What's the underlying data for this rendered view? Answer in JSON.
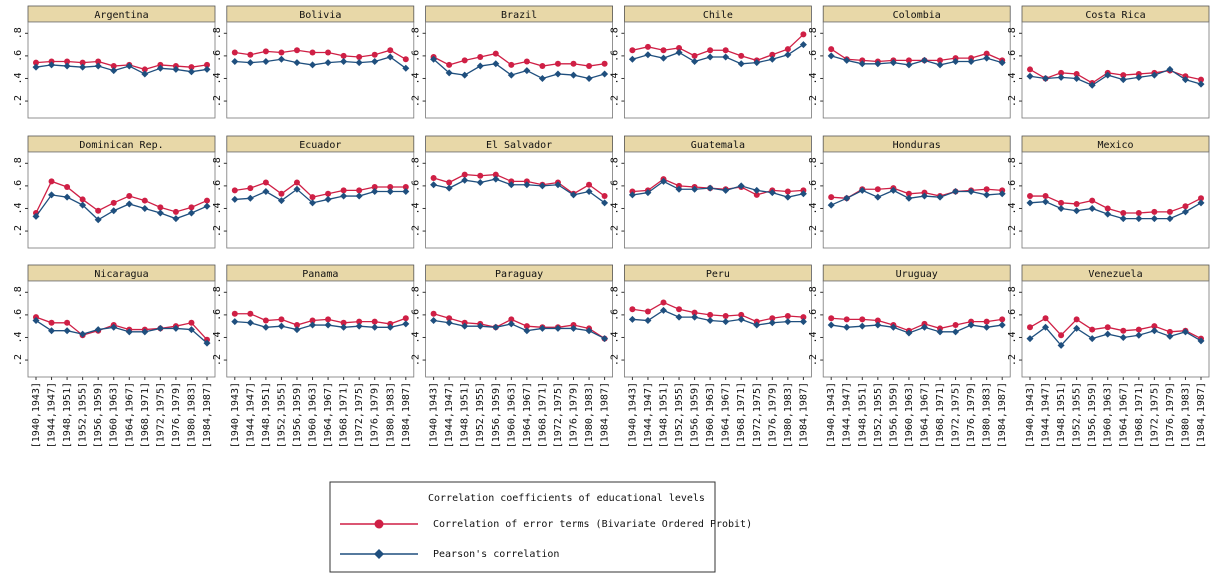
{
  "chart_data": {
    "type": "line",
    "categories": [
      "[1940,1943]",
      "[1944,1947]",
      "[1948,1951]",
      "[1952,1955]",
      "[1956,1959]",
      "[1960,1963]",
      "[1964,1967]",
      "[1968,1971]",
      "[1972,1975]",
      "[1976,1979]",
      "[1980,1983]",
      "[1984,1987]"
    ],
    "ylim": [
      0.05,
      0.9
    ],
    "yticks": [
      {
        "value": 0.2,
        "label": ".2"
      },
      {
        "value": 0.4,
        "label": ".4"
      },
      {
        "value": 0.6,
        "label": ".6"
      },
      {
        "value": 0.8,
        "label": ".8"
      }
    ],
    "legend_title": "Correlation coefficients of educational levels",
    "series": [
      {
        "name": "Correlation of error terms (Bivariate Ordered Probit)",
        "color": "#cf1f45",
        "marker": "circle"
      },
      {
        "name": "Pearson's correlation",
        "color": "#1f4f7e",
        "marker": "diamond"
      }
    ],
    "panels": [
      {
        "title": "Argentina",
        "series": [
          {
            "values": [
              0.54,
              0.55,
              0.55,
              0.54,
              0.55,
              0.51,
              0.52,
              0.48,
              0.52,
              0.51,
              0.5,
              0.52
            ]
          },
          {
            "values": [
              0.5,
              0.52,
              0.51,
              0.5,
              0.51,
              0.47,
              0.51,
              0.44,
              0.49,
              0.48,
              0.46,
              0.48
            ]
          }
        ]
      },
      {
        "title": "Bolivia",
        "series": [
          {
            "values": [
              0.63,
              0.61,
              0.64,
              0.63,
              0.65,
              0.63,
              0.63,
              0.6,
              0.59,
              0.61,
              0.65,
              0.57
            ]
          },
          {
            "values": [
              0.55,
              0.54,
              0.55,
              0.57,
              0.54,
              0.52,
              0.54,
              0.55,
              0.54,
              0.55,
              0.59,
              0.49
            ]
          }
        ]
      },
      {
        "title": "Brazil",
        "series": [
          {
            "values": [
              0.59,
              0.52,
              0.56,
              0.59,
              0.62,
              0.52,
              0.55,
              0.51,
              0.53,
              0.53,
              0.51,
              0.53
            ]
          },
          {
            "values": [
              0.57,
              0.45,
              0.43,
              0.51,
              0.53,
              0.43,
              0.47,
              0.4,
              0.44,
              0.43,
              0.4,
              0.44
            ]
          }
        ]
      },
      {
        "title": "Chile",
        "series": [
          {
            "values": [
              0.65,
              0.68,
              0.65,
              0.67,
              0.6,
              0.65,
              0.65,
              0.6,
              0.56,
              0.61,
              0.66,
              0.79
            ]
          },
          {
            "values": [
              0.57,
              0.61,
              0.58,
              0.63,
              0.55,
              0.59,
              0.59,
              0.53,
              0.54,
              0.57,
              0.61,
              0.7
            ]
          }
        ]
      },
      {
        "title": "Colombia",
        "series": [
          {
            "values": [
              0.66,
              0.57,
              0.56,
              0.55,
              0.56,
              0.56,
              0.56,
              0.56,
              0.58,
              0.58,
              0.62,
              0.56
            ]
          },
          {
            "values": [
              0.6,
              0.56,
              0.53,
              0.53,
              0.54,
              0.52,
              0.56,
              0.52,
              0.55,
              0.55,
              0.58,
              0.54
            ]
          }
        ]
      },
      {
        "title": "Costa Rica",
        "series": [
          {
            "values": [
              0.48,
              0.4,
              0.45,
              0.44,
              0.36,
              0.45,
              0.43,
              0.44,
              0.45,
              0.47,
              0.42,
              0.39
            ]
          },
          {
            "values": [
              0.42,
              0.4,
              0.41,
              0.4,
              0.34,
              0.43,
              0.39,
              0.41,
              0.43,
              0.48,
              0.39,
              0.35
            ]
          }
        ]
      },
      {
        "title": "Dominican Rep.",
        "series": [
          {
            "values": [
              0.36,
              0.64,
              0.59,
              0.48,
              0.38,
              0.45,
              0.51,
              0.47,
              0.41,
              0.37,
              0.41,
              0.47
            ]
          },
          {
            "values": [
              0.33,
              0.52,
              0.5,
              0.43,
              0.3,
              0.38,
              0.44,
              0.4,
              0.36,
              0.31,
              0.36,
              0.42
            ]
          }
        ]
      },
      {
        "title": "Ecuador",
        "series": [
          {
            "values": [
              0.56,
              0.58,
              0.63,
              0.53,
              0.63,
              0.5,
              0.53,
              0.56,
              0.56,
              0.59,
              0.59,
              0.59
            ]
          },
          {
            "values": [
              0.48,
              0.49,
              0.55,
              0.47,
              0.57,
              0.45,
              0.48,
              0.51,
              0.51,
              0.55,
              0.55,
              0.55
            ]
          }
        ]
      },
      {
        "title": "El Salvador",
        "series": [
          {
            "values": [
              0.67,
              0.63,
              0.7,
              0.69,
              0.7,
              0.64,
              0.64,
              0.61,
              0.63,
              0.53,
              0.61,
              0.51
            ]
          },
          {
            "values": [
              0.61,
              0.58,
              0.65,
              0.63,
              0.66,
              0.61,
              0.61,
              0.6,
              0.61,
              0.52,
              0.55,
              0.45
            ]
          }
        ]
      },
      {
        "title": "Guatemala",
        "series": [
          {
            "values": [
              0.55,
              0.56,
              0.66,
              0.6,
              0.59,
              0.58,
              0.57,
              0.59,
              0.52,
              0.56,
              0.55,
              0.56
            ]
          },
          {
            "values": [
              0.52,
              0.54,
              0.64,
              0.57,
              0.57,
              0.58,
              0.56,
              0.6,
              0.56,
              0.54,
              0.5,
              0.53
            ]
          }
        ]
      },
      {
        "title": "Honduras",
        "series": [
          {
            "values": [
              0.5,
              0.49,
              0.57,
              0.57,
              0.58,
              0.53,
              0.54,
              0.51,
              0.55,
              0.56,
              0.57,
              0.56
            ]
          },
          {
            "values": [
              0.43,
              0.49,
              0.56,
              0.5,
              0.56,
              0.49,
              0.51,
              0.5,
              0.55,
              0.55,
              0.52,
              0.53
            ]
          }
        ]
      },
      {
        "title": "Mexico",
        "series": [
          {
            "values": [
              0.51,
              0.51,
              0.45,
              0.44,
              0.47,
              0.4,
              0.36,
              0.36,
              0.37,
              0.37,
              0.42,
              0.49
            ]
          },
          {
            "values": [
              0.45,
              0.46,
              0.4,
              0.38,
              0.4,
              0.35,
              0.31,
              0.31,
              0.31,
              0.31,
              0.37,
              0.45
            ]
          }
        ]
      },
      {
        "title": "Nicaragua",
        "series": [
          {
            "values": [
              0.58,
              0.53,
              0.53,
              0.42,
              0.46,
              0.51,
              0.47,
              0.47,
              0.48,
              0.5,
              0.53,
              0.38
            ]
          },
          {
            "values": [
              0.55,
              0.46,
              0.46,
              0.43,
              0.47,
              0.49,
              0.45,
              0.45,
              0.48,
              0.48,
              0.47,
              0.35
            ]
          }
        ]
      },
      {
        "title": "Panama",
        "series": [
          {
            "values": [
              0.61,
              0.61,
              0.55,
              0.56,
              0.51,
              0.55,
              0.56,
              0.53,
              0.54,
              0.54,
              0.52,
              0.57
            ]
          },
          {
            "values": [
              0.54,
              0.53,
              0.49,
              0.5,
              0.47,
              0.51,
              0.51,
              0.49,
              0.5,
              0.49,
              0.49,
              0.52
            ]
          }
        ]
      },
      {
        "title": "Paraguay",
        "series": [
          {
            "values": [
              0.61,
              0.57,
              0.53,
              0.52,
              0.49,
              0.56,
              0.5,
              0.49,
              0.49,
              0.51,
              0.48,
              0.39
            ]
          },
          {
            "values": [
              0.55,
              0.53,
              0.5,
              0.5,
              0.49,
              0.52,
              0.46,
              0.48,
              0.48,
              0.48,
              0.46,
              0.39
            ]
          }
        ]
      },
      {
        "title": "Peru",
        "series": [
          {
            "values": [
              0.65,
              0.63,
              0.71,
              0.65,
              0.62,
              0.6,
              0.59,
              0.6,
              0.54,
              0.57,
              0.59,
              0.58
            ]
          },
          {
            "values": [
              0.56,
              0.55,
              0.64,
              0.58,
              0.58,
              0.55,
              0.54,
              0.56,
              0.51,
              0.53,
              0.54,
              0.54
            ]
          }
        ]
      },
      {
        "title": "Uruguay",
        "series": [
          {
            "values": [
              0.57,
              0.56,
              0.56,
              0.55,
              0.51,
              0.46,
              0.52,
              0.48,
              0.51,
              0.54,
              0.54,
              0.56
            ]
          },
          {
            "values": [
              0.51,
              0.49,
              0.5,
              0.51,
              0.49,
              0.44,
              0.49,
              0.45,
              0.45,
              0.51,
              0.49,
              0.51
            ]
          }
        ]
      },
      {
        "title": "Venezuela",
        "series": [
          {
            "values": [
              0.49,
              0.57,
              0.42,
              0.56,
              0.47,
              0.49,
              0.46,
              0.47,
              0.5,
              0.45,
              0.46,
              0.39
            ]
          },
          {
            "values": [
              0.39,
              0.49,
              0.33,
              0.48,
              0.39,
              0.43,
              0.4,
              0.42,
              0.46,
              0.41,
              0.45,
              0.37
            ]
          }
        ]
      }
    ]
  }
}
